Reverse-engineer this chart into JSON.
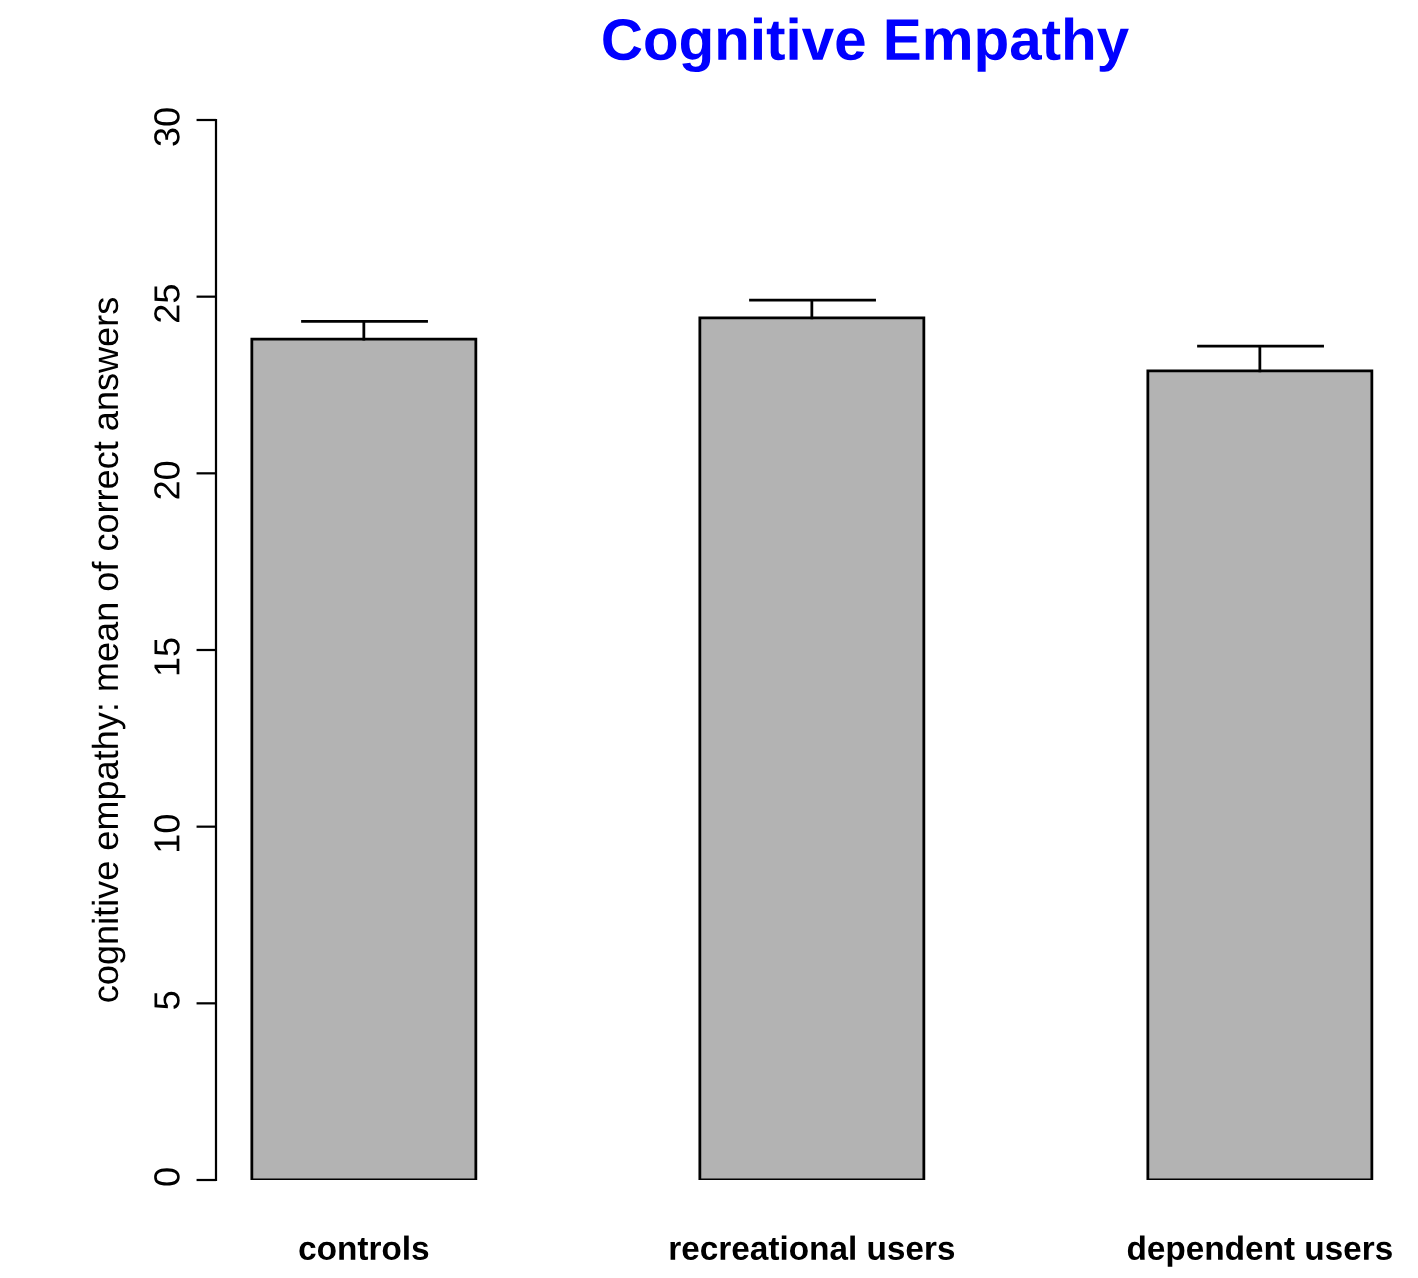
{
  "chart_data": {
    "type": "bar",
    "title": "Cognitive Empathy",
    "ylabel": "cognitive empathy: mean of correct answers",
    "categories": [
      "controls",
      "recreational users",
      "dependent users"
    ],
    "series": [
      {
        "color": "#b3b3b3",
        "values": [
          23.8,
          24.4,
          22.9
        ],
        "errors": [
          [
            23.8,
            24.3
          ],
          [
            24.4,
            24.9
          ],
          [
            22.9,
            23.6
          ]
        ]
      }
    ],
    "ylim": [
      0,
      30
    ],
    "yticks": [
      0,
      5,
      10,
      15,
      20,
      25,
      30
    ],
    "grid": false,
    "legend": false
  }
}
